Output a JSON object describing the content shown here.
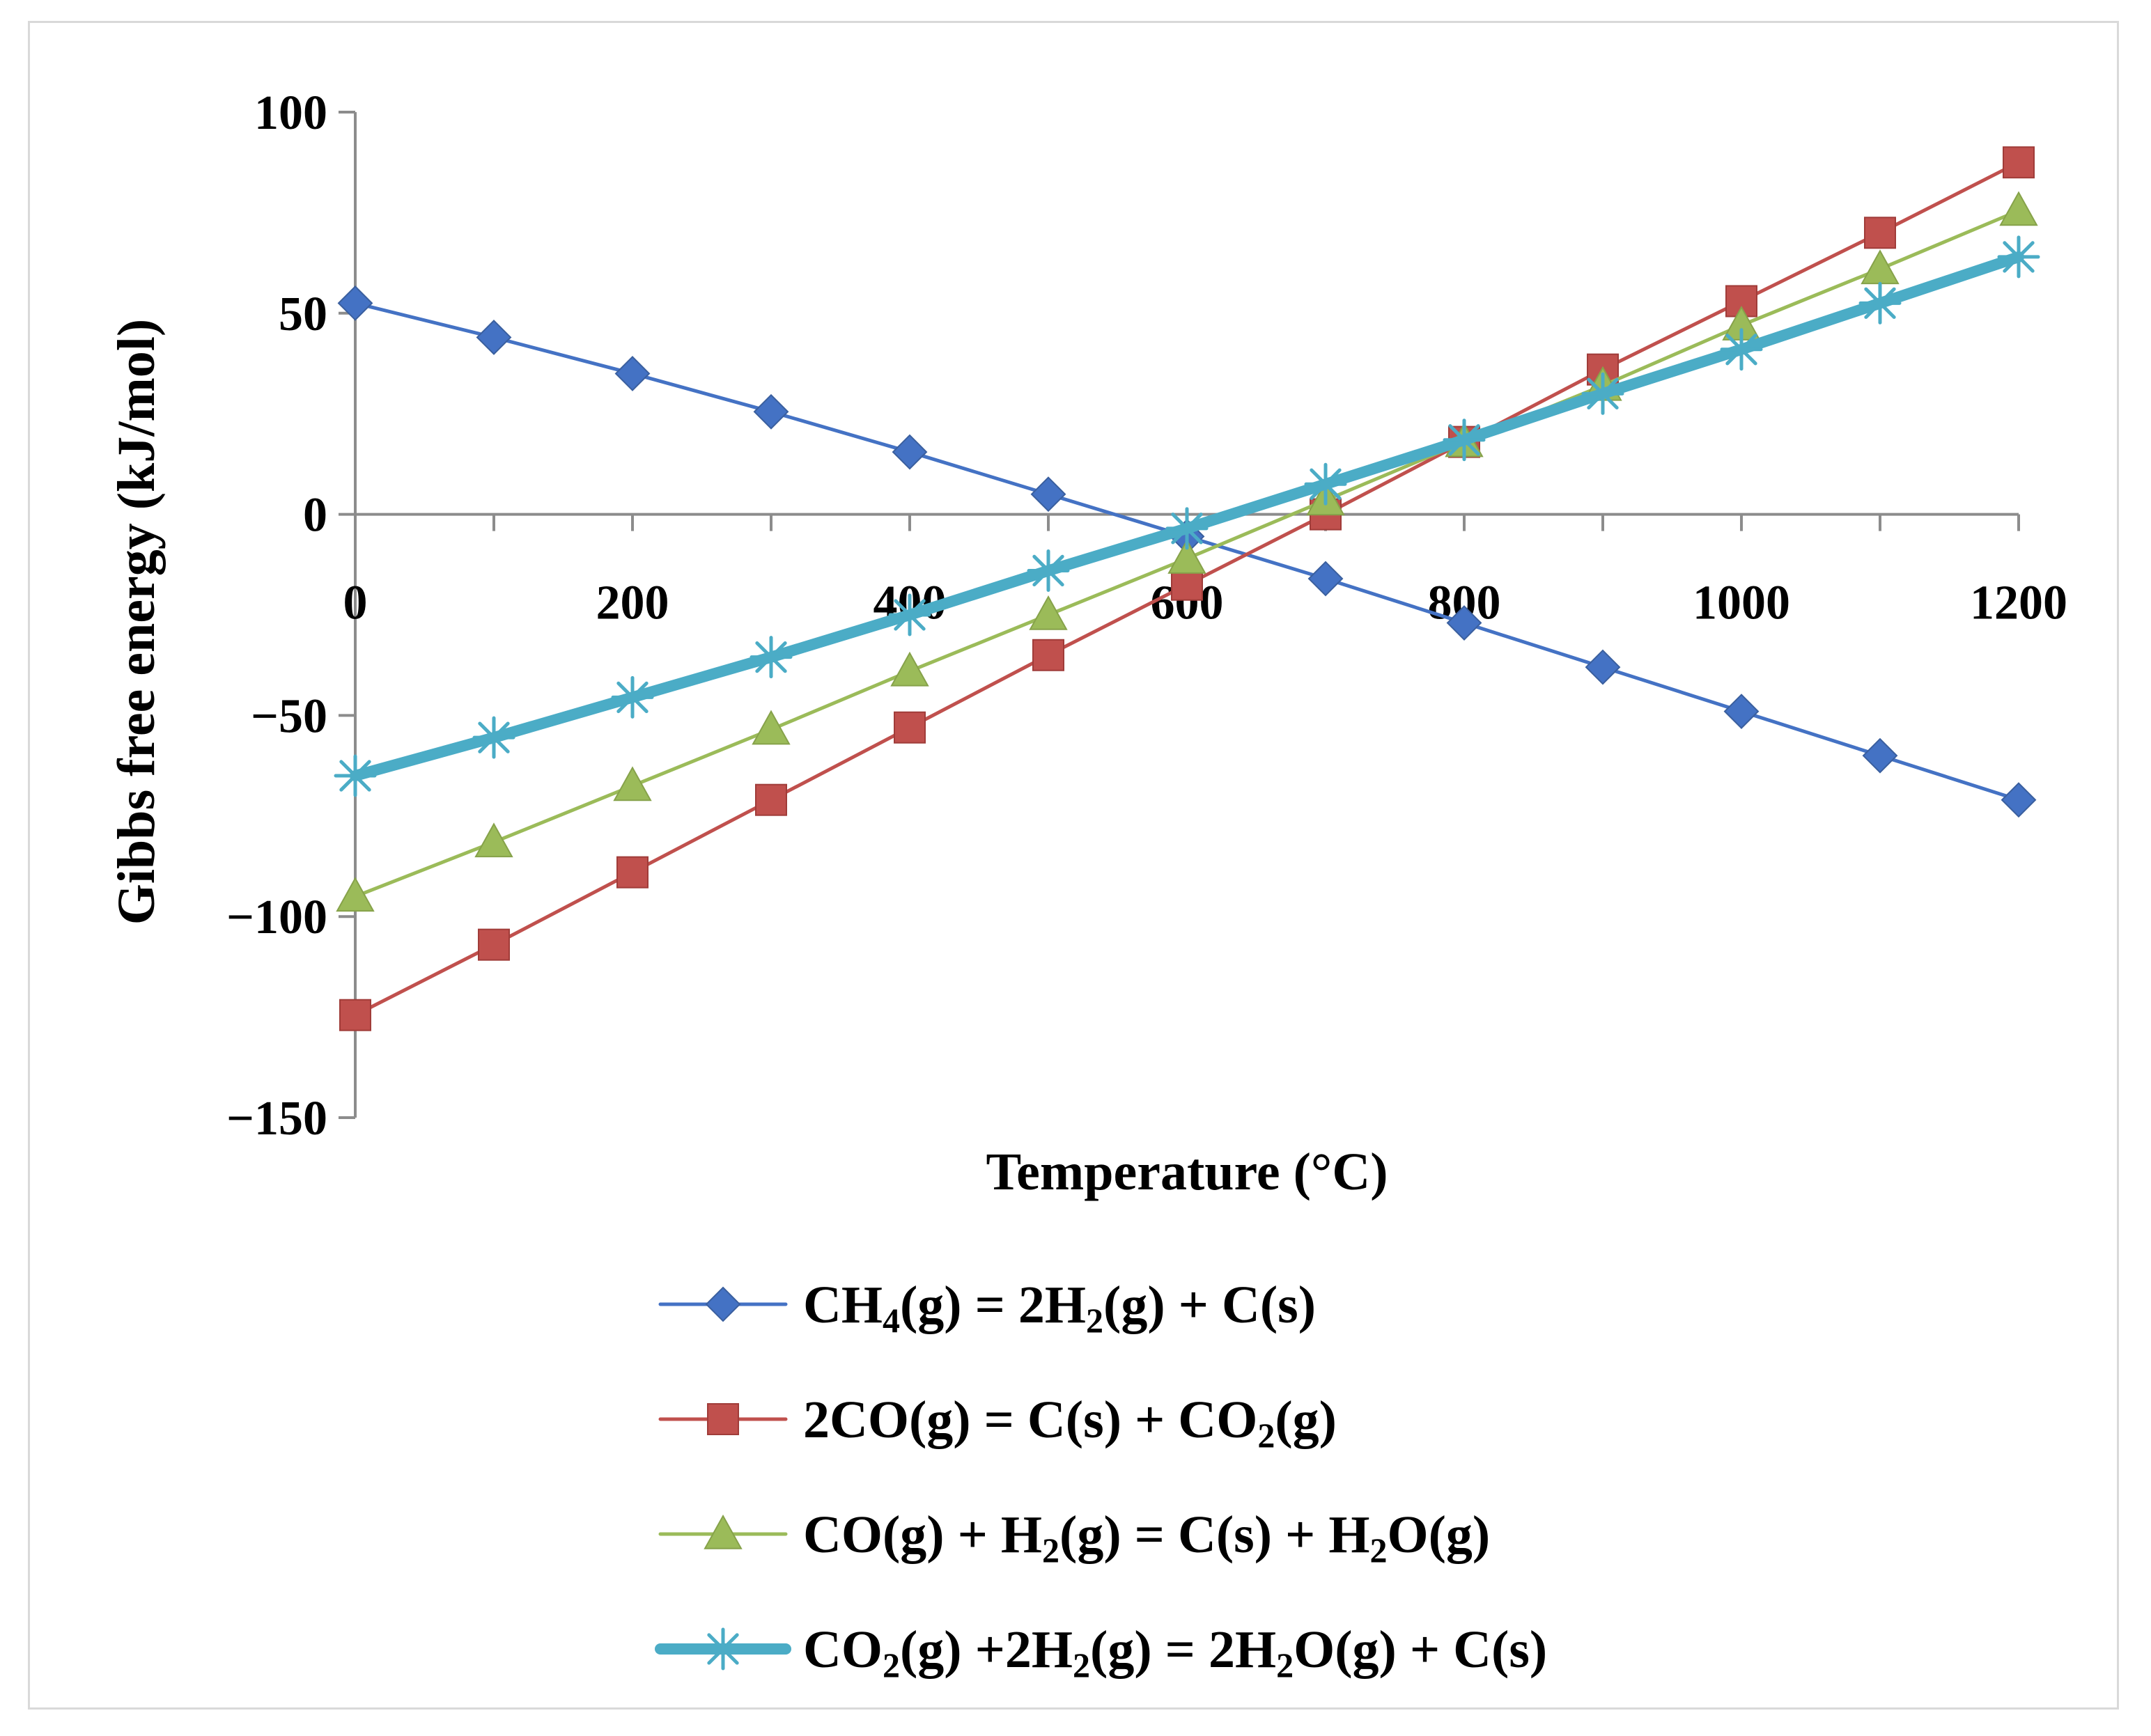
{
  "chart_data": {
    "type": "line",
    "title": "",
    "xlabel": "Temperature (°C)",
    "ylabel": "Gibbs free energy (kJ/mol)",
    "x": [
      0,
      100,
      200,
      300,
      400,
      500,
      600,
      700,
      800,
      900,
      1000,
      1100,
      1200
    ],
    "xlim": [
      0,
      1200
    ],
    "ylim": [
      -150,
      100
    ],
    "xticks": [
      0,
      200,
      400,
      600,
      800,
      1000,
      1200
    ],
    "yticks": [
      100,
      50,
      0,
      -50,
      -100,
      -150
    ],
    "xtick_labels": [
      "0",
      "200",
      "400",
      "600",
      "800",
      "1000",
      "1200"
    ],
    "ytick_labels": [
      "100",
      "50",
      "0",
      "−50",
      "−100",
      "−150"
    ],
    "grid": false,
    "legend_position": "bottom",
    "series": [
      {
        "name": "CH4(g) = 2H2(g) + C(s)",
        "legend_parts": [
          [
            "CH",
            false
          ],
          [
            "4",
            true
          ],
          [
            "(g) = 2H",
            false
          ],
          [
            "2",
            true
          ],
          [
            "(g) + C(s)",
            false
          ]
        ],
        "color": "#4472c4",
        "marker": "diamond",
        "thick": false,
        "values": [
          52.5,
          44,
          35,
          25.5,
          15.5,
          5,
          -5.5,
          -16,
          -27,
          -38,
          -49,
          -60,
          -71
        ]
      },
      {
        "name": "2CO(g) = C(s) + CO2(g)",
        "legend_parts": [
          [
            "2CO(g) = C(s) + CO",
            false
          ],
          [
            "2",
            true
          ],
          [
            "(g)",
            false
          ]
        ],
        "color": "#c0504d",
        "marker": "square",
        "thick": false,
        "values": [
          -124.5,
          -107,
          -89,
          -71,
          -53,
          -35,
          -17.5,
          0,
          18,
          36,
          53,
          70,
          87.5
        ]
      },
      {
        "name": "CO(g) + H2(g) = C(s) + H2O(g)",
        "legend_parts": [
          [
            "CO(g) + H",
            false
          ],
          [
            "2",
            true
          ],
          [
            "(g) = C(s) + H",
            false
          ],
          [
            "2",
            true
          ],
          [
            "O(g)",
            false
          ]
        ],
        "color": "#9bbb59",
        "marker": "triangle",
        "thick": false,
        "values": [
          -95,
          -81.5,
          -67.5,
          -53.5,
          -39,
          -25,
          -11,
          3.5,
          18,
          32,
          47,
          61,
          75.5
        ]
      },
      {
        "name": "CO2(g) +2H2(g) = 2H2O(g) + C(s)",
        "legend_parts": [
          [
            "CO",
            false
          ],
          [
            "2",
            true
          ],
          [
            "(g) +2H",
            false
          ],
          [
            "2",
            true
          ],
          [
            "(g) = 2H",
            false
          ],
          [
            "2",
            true
          ],
          [
            "O(g) + C(s)",
            false
          ]
        ],
        "color": "#4bacc6",
        "marker": "star",
        "thick": true,
        "values": [
          -65,
          -55.5,
          -45.5,
          -35.5,
          -25,
          -14,
          -3.5,
          7.5,
          18.5,
          30,
          41,
          52.5,
          64
        ]
      }
    ]
  }
}
